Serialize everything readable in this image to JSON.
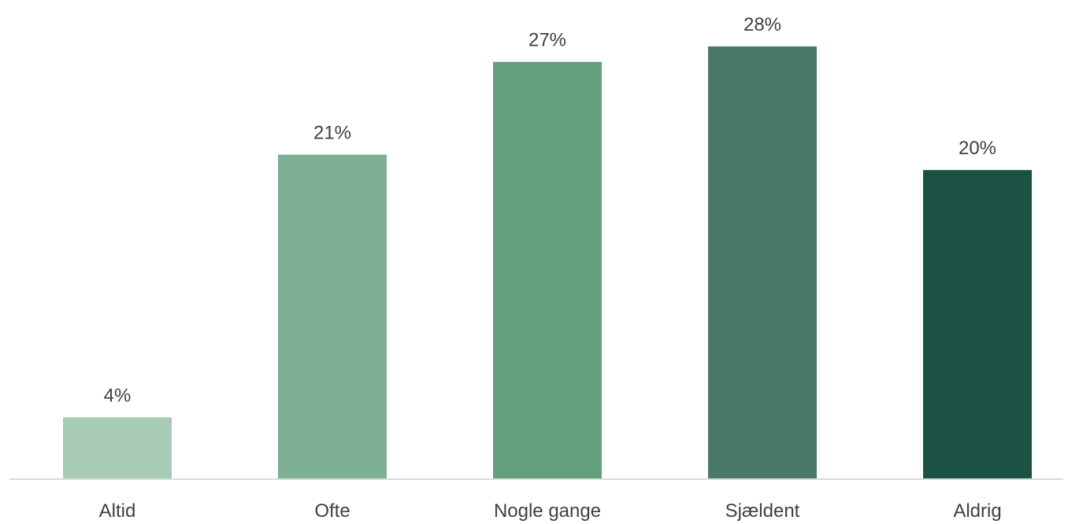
{
  "chart_data": {
    "type": "bar",
    "categories": [
      "Altid",
      "Ofte",
      "Nogle gange",
      "Sjældent",
      "Aldrig"
    ],
    "values": [
      4,
      21,
      27,
      28,
      20
    ],
    "data_labels": [
      "4%",
      "21%",
      "27%",
      "28%",
      "20%"
    ],
    "colors": [
      "#a7cbb5",
      "#7daf93",
      "#62a07c",
      "#4a7a67",
      "#1c5243"
    ],
    "axis_color": "#d9d9d9",
    "label_color": "#404040",
    "ylim": [
      0,
      28
    ],
    "grid": false,
    "legend": "none"
  }
}
